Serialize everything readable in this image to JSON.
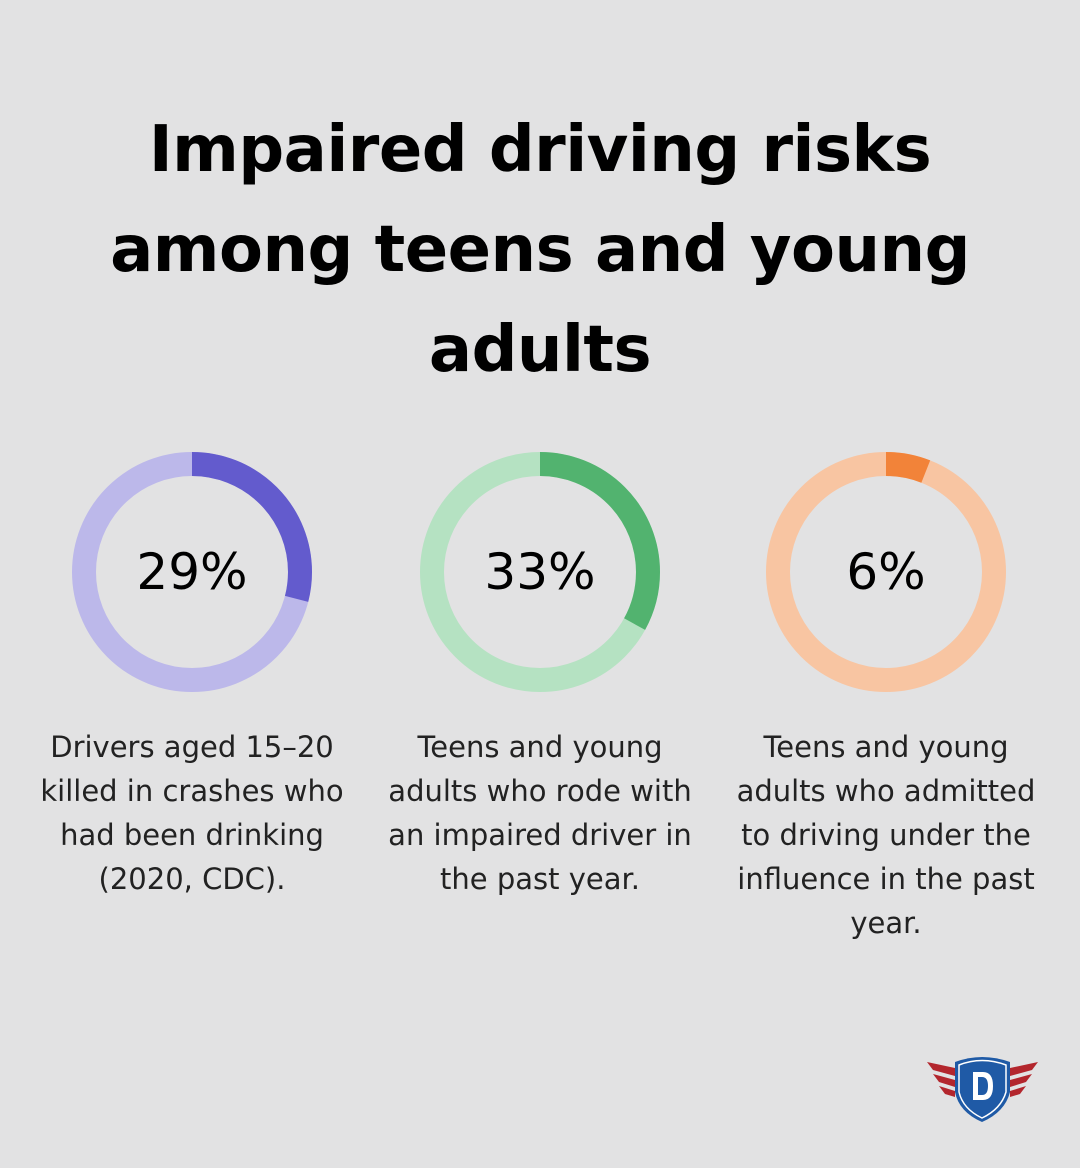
{
  "title": "Impaired driving risks among teens and young adults",
  "chart_data": [
    {
      "type": "pie",
      "variant": "donut",
      "value": 29,
      "label": "29%",
      "description": "Drivers aged 15–20 killed in crashes who had been drinking (2020, CDC).",
      "color": "#635bcd",
      "track_color": "#bcb8ea"
    },
    {
      "type": "pie",
      "variant": "donut",
      "value": 33,
      "label": "33%",
      "description": "Teens and young adults who rode with an impaired driver in the past year.",
      "color": "#52b36f",
      "track_color": "#b5e2c2"
    },
    {
      "type": "pie",
      "variant": "donut",
      "value": 6,
      "label": "6%",
      "description": "Teens and young adults who admitted to driving under the influence in the past year.",
      "color": "#f28339",
      "track_color": "#f8c5a2"
    }
  ],
  "logo": {
    "letter": "D",
    "icon": "shield-wings-logo",
    "colors": {
      "shield": "#1f5aa6",
      "wings": "#b3262d"
    }
  }
}
